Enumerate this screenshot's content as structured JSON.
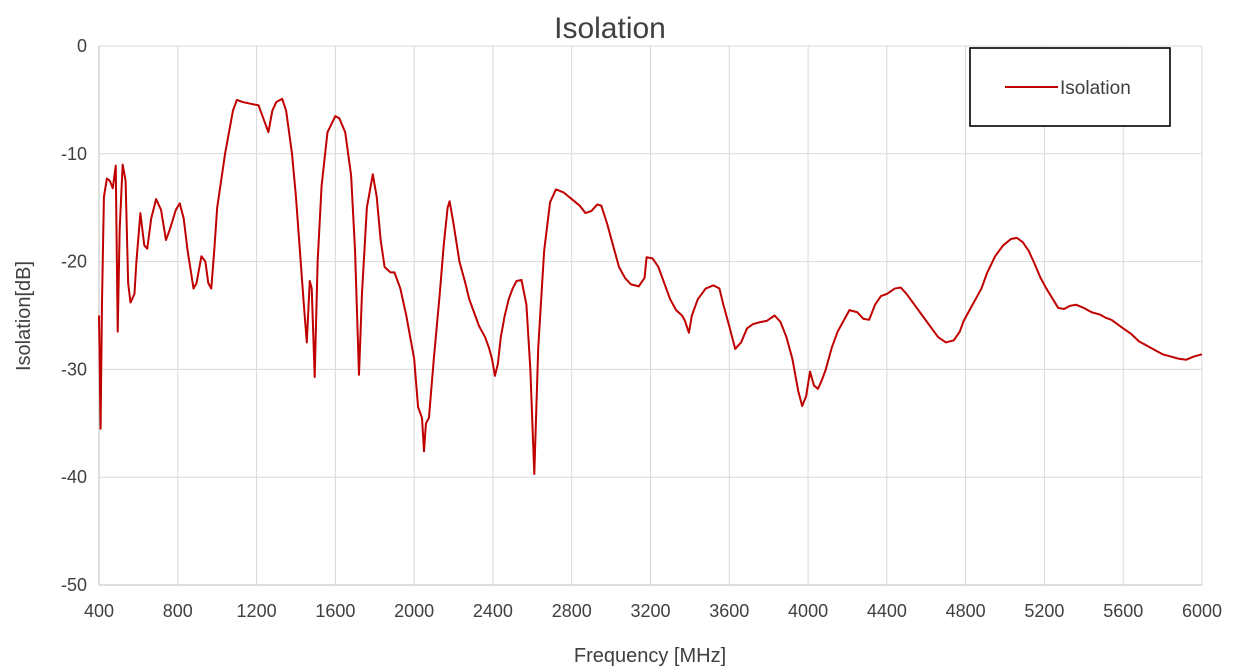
{
  "chart_data": {
    "type": "line",
    "title": "Isolation",
    "xlabel": "Frequency [MHz]",
    "ylabel": "Isolation[dB]",
    "xlim": [
      400,
      6000
    ],
    "ylim": [
      -50,
      0
    ],
    "x_ticks": [
      400,
      800,
      1200,
      1600,
      2000,
      2400,
      2800,
      3200,
      3600,
      4000,
      4400,
      4800,
      5200,
      5600,
      6000
    ],
    "y_ticks": [
      0,
      -10,
      -20,
      -30,
      -40,
      -50
    ],
    "grid": true,
    "legend_position": "top-right",
    "series": [
      {
        "name": "Isolation",
        "color": "#c00000",
        "points": [
          [
            400,
            -25
          ],
          [
            408,
            -35.5
          ],
          [
            415,
            -24
          ],
          [
            425,
            -14
          ],
          [
            440,
            -12.3
          ],
          [
            455,
            -12.5
          ],
          [
            470,
            -13.2
          ],
          [
            485,
            -11.1
          ],
          [
            495,
            -26.5
          ],
          [
            505,
            -17
          ],
          [
            520,
            -11
          ],
          [
            535,
            -12.5
          ],
          [
            548,
            -22
          ],
          [
            560,
            -23.8
          ],
          [
            580,
            -23
          ],
          [
            590,
            -20
          ],
          [
            610,
            -15.5
          ],
          [
            630,
            -18.5
          ],
          [
            645,
            -18.8
          ],
          [
            665,
            -16
          ],
          [
            690,
            -14.2
          ],
          [
            715,
            -15.2
          ],
          [
            740,
            -18
          ],
          [
            760,
            -17
          ],
          [
            790,
            -15.2
          ],
          [
            810,
            -14.6
          ],
          [
            830,
            -16
          ],
          [
            850,
            -19
          ],
          [
            880,
            -22.5
          ],
          [
            895,
            -22
          ],
          [
            920,
            -19.5
          ],
          [
            940,
            -20
          ],
          [
            955,
            -22
          ],
          [
            970,
            -22.5
          ],
          [
            985,
            -19
          ],
          [
            1000,
            -15
          ],
          [
            1040,
            -10
          ],
          [
            1080,
            -6
          ],
          [
            1100,
            -5
          ],
          [
            1130,
            -5.2
          ],
          [
            1180,
            -5.4
          ],
          [
            1210,
            -5.5
          ],
          [
            1240,
            -7
          ],
          [
            1260,
            -8
          ],
          [
            1280,
            -6
          ],
          [
            1300,
            -5.2
          ],
          [
            1330,
            -4.9
          ],
          [
            1350,
            -6
          ],
          [
            1380,
            -10
          ],
          [
            1400,
            -14
          ],
          [
            1420,
            -19
          ],
          [
            1440,
            -24
          ],
          [
            1455,
            -27.5
          ],
          [
            1470,
            -21.8
          ],
          [
            1480,
            -22.5
          ],
          [
            1495,
            -30.7
          ],
          [
            1510,
            -20
          ],
          [
            1530,
            -13
          ],
          [
            1560,
            -8
          ],
          [
            1600,
            -6.5
          ],
          [
            1620,
            -6.7
          ],
          [
            1650,
            -8
          ],
          [
            1680,
            -12
          ],
          [
            1700,
            -19
          ],
          [
            1720,
            -30.5
          ],
          [
            1735,
            -23
          ],
          [
            1760,
            -15
          ],
          [
            1790,
            -11.9
          ],
          [
            1810,
            -14
          ],
          [
            1830,
            -18
          ],
          [
            1850,
            -20.5
          ],
          [
            1880,
            -21
          ],
          [
            1900,
            -21
          ],
          [
            1930,
            -22.5
          ],
          [
            1960,
            -25
          ],
          [
            1980,
            -27
          ],
          [
            2000,
            -29
          ],
          [
            2020,
            -33.5
          ],
          [
            2040,
            -34.5
          ],
          [
            2050,
            -37.6
          ],
          [
            2060,
            -35
          ],
          [
            2075,
            -34.5
          ],
          [
            2100,
            -29
          ],
          [
            2130,
            -23
          ],
          [
            2150,
            -18.5
          ],
          [
            2170,
            -15
          ],
          [
            2180,
            -14.4
          ],
          [
            2200,
            -16.5
          ],
          [
            2230,
            -20
          ],
          [
            2260,
            -22
          ],
          [
            2280,
            -23.5
          ],
          [
            2300,
            -24.5
          ],
          [
            2330,
            -26
          ],
          [
            2360,
            -27
          ],
          [
            2380,
            -28
          ],
          [
            2395,
            -29
          ],
          [
            2410,
            -30.6
          ],
          [
            2425,
            -29.5
          ],
          [
            2440,
            -27
          ],
          [
            2460,
            -25
          ],
          [
            2480,
            -23.5
          ],
          [
            2500,
            -22.5
          ],
          [
            2520,
            -21.8
          ],
          [
            2545,
            -21.7
          ],
          [
            2570,
            -24
          ],
          [
            2590,
            -30
          ],
          [
            2610,
            -39.7
          ],
          [
            2630,
            -28
          ],
          [
            2660,
            -19
          ],
          [
            2690,
            -14.5
          ],
          [
            2720,
            -13.3
          ],
          [
            2760,
            -13.6
          ],
          [
            2800,
            -14.2
          ],
          [
            2840,
            -14.8
          ],
          [
            2870,
            -15.5
          ],
          [
            2900,
            -15.3
          ],
          [
            2930,
            -14.7
          ],
          [
            2950,
            -14.8
          ],
          [
            2980,
            -16.5
          ],
          [
            3010,
            -18.5
          ],
          [
            3040,
            -20.5
          ],
          [
            3070,
            -21.5
          ],
          [
            3100,
            -22.1
          ],
          [
            3140,
            -22.3
          ],
          [
            3170,
            -21.5
          ],
          [
            3180,
            -19.6
          ],
          [
            3210,
            -19.7
          ],
          [
            3240,
            -20.5
          ],
          [
            3270,
            -22
          ],
          [
            3300,
            -23.5
          ],
          [
            3330,
            -24.5
          ],
          [
            3360,
            -25
          ],
          [
            3375,
            -25.5
          ],
          [
            3395,
            -26.6
          ],
          [
            3410,
            -25
          ],
          [
            3440,
            -23.5
          ],
          [
            3480,
            -22.5
          ],
          [
            3520,
            -22.2
          ],
          [
            3550,
            -22.5
          ],
          [
            3570,
            -24
          ],
          [
            3600,
            -26
          ],
          [
            3630,
            -28.1
          ],
          [
            3660,
            -27.5
          ],
          [
            3690,
            -26.2
          ],
          [
            3720,
            -25.8
          ],
          [
            3760,
            -25.6
          ],
          [
            3790,
            -25.5
          ],
          [
            3830,
            -25
          ],
          [
            3860,
            -25.6
          ],
          [
            3890,
            -27
          ],
          [
            3920,
            -29
          ],
          [
            3950,
            -32
          ],
          [
            3970,
            -33.4
          ],
          [
            3990,
            -32.5
          ],
          [
            4010,
            -30.2
          ],
          [
            4030,
            -31.5
          ],
          [
            4050,
            -31.8
          ],
          [
            4070,
            -31
          ],
          [
            4090,
            -30
          ],
          [
            4120,
            -28
          ],
          [
            4150,
            -26.5
          ],
          [
            4180,
            -25.5
          ],
          [
            4210,
            -24.5
          ],
          [
            4250,
            -24.7
          ],
          [
            4280,
            -25.3
          ],
          [
            4310,
            -25.4
          ],
          [
            4340,
            -24
          ],
          [
            4370,
            -23.2
          ],
          [
            4400,
            -23
          ],
          [
            4440,
            -22.5
          ],
          [
            4470,
            -22.4
          ],
          [
            4500,
            -23
          ],
          [
            4540,
            -24
          ],
          [
            4580,
            -25
          ],
          [
            4620,
            -26
          ],
          [
            4660,
            -27
          ],
          [
            4700,
            -27.5
          ],
          [
            4740,
            -27.3
          ],
          [
            4770,
            -26.5
          ],
          [
            4790,
            -25.5
          ],
          [
            4820,
            -24.5
          ],
          [
            4850,
            -23.5
          ],
          [
            4880,
            -22.5
          ],
          [
            4910,
            -21
          ],
          [
            4950,
            -19.5
          ],
          [
            4990,
            -18.5
          ],
          [
            5030,
            -17.9
          ],
          [
            5060,
            -17.8
          ],
          [
            5090,
            -18.2
          ],
          [
            5120,
            -19
          ],
          [
            5150,
            -20.2
          ],
          [
            5180,
            -21.5
          ],
          [
            5210,
            -22.5
          ],
          [
            5240,
            -23.4
          ],
          [
            5270,
            -24.3
          ],
          [
            5300,
            -24.4
          ],
          [
            5330,
            -24.1
          ],
          [
            5360,
            -24
          ],
          [
            5400,
            -24.3
          ],
          [
            5440,
            -24.7
          ],
          [
            5480,
            -24.9
          ],
          [
            5510,
            -25.2
          ],
          [
            5540,
            -25.4
          ],
          [
            5570,
            -25.8
          ],
          [
            5600,
            -26.2
          ],
          [
            5640,
            -26.7
          ],
          [
            5680,
            -27.4
          ],
          [
            5720,
            -27.8
          ],
          [
            5760,
            -28.2
          ],
          [
            5800,
            -28.6
          ],
          [
            5840,
            -28.8
          ],
          [
            5880,
            -29
          ],
          [
            5920,
            -29.1
          ],
          [
            5960,
            -28.8
          ],
          [
            6000,
            -28.6
          ]
        ]
      }
    ]
  }
}
